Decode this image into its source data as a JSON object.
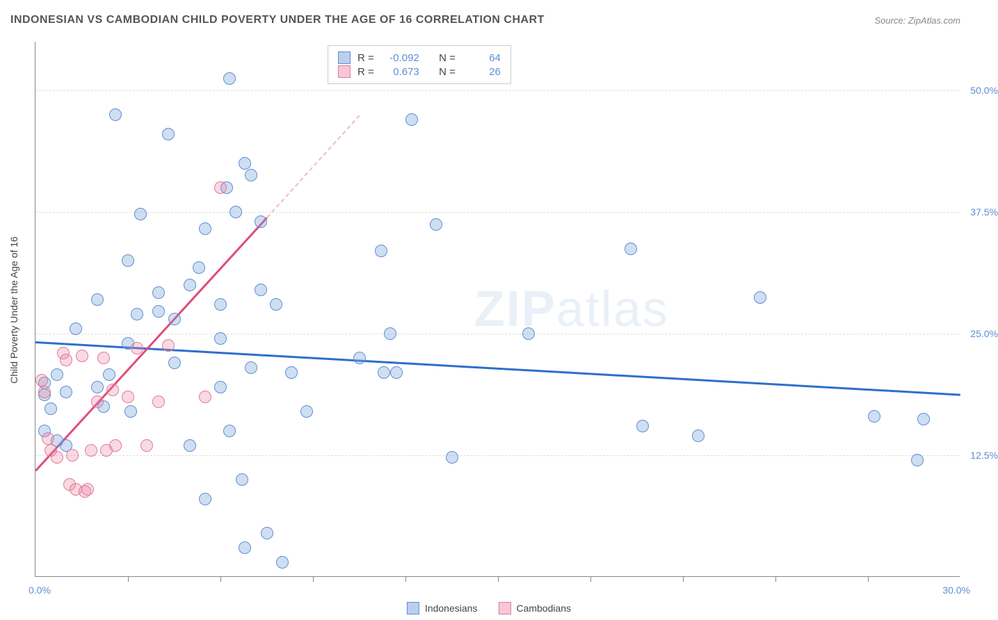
{
  "title": "INDONESIAN VS CAMBODIAN CHILD POVERTY UNDER THE AGE OF 16 CORRELATION CHART",
  "source": "Source: ZipAtlas.com",
  "watermark": {
    "bold": "ZIP",
    "light": "atlas"
  },
  "chart": {
    "type": "scatter",
    "xlim": [
      0,
      30
    ],
    "ylim": [
      0,
      55
    ],
    "x_min_label": "0.0%",
    "x_max_label": "30.0%",
    "y_ticks": [
      12.5,
      25.0,
      37.5,
      50.0
    ],
    "y_tick_labels": [
      "12.5%",
      "25.0%",
      "37.5%",
      "50.0%"
    ],
    "x_tick_positions": [
      3,
      6,
      9,
      12,
      15,
      18,
      21,
      24,
      27
    ],
    "y_axis_title": "Child Poverty Under the Age of 16",
    "background_color": "#ffffff",
    "grid_color": "#dddddd",
    "series": [
      {
        "name": "Indonesians",
        "color_fill": "rgba(120,160,215,0.35)",
        "color_stroke": "#5b8fd6",
        "marker_radius": 9,
        "R": "-0.092",
        "N": "64",
        "trend": {
          "x1": 0,
          "y1": 24.2,
          "x2": 30,
          "y2": 18.8,
          "color": "#2e6fc9",
          "width": 2.5
        },
        "points": [
          [
            6.3,
            51.2
          ],
          [
            2.6,
            47.5
          ],
          [
            4.3,
            45.5
          ],
          [
            6.8,
            42.5
          ],
          [
            7.0,
            41.3
          ],
          [
            6.2,
            40.0
          ],
          [
            3.4,
            37.3
          ],
          [
            7.3,
            36.5
          ],
          [
            5.5,
            35.8
          ],
          [
            13.0,
            36.2
          ],
          [
            3.0,
            32.5
          ],
          [
            11.2,
            33.5
          ],
          [
            19.3,
            33.7
          ],
          [
            5.0,
            30.0
          ],
          [
            23.5,
            28.7
          ],
          [
            7.3,
            29.5
          ],
          [
            6.0,
            28.0
          ],
          [
            2.0,
            28.5
          ],
          [
            4.0,
            27.3
          ],
          [
            3.3,
            27.0
          ],
          [
            4.5,
            26.5
          ],
          [
            1.3,
            25.5
          ],
          [
            11.5,
            25.0
          ],
          [
            16.0,
            25.0
          ],
          [
            3.0,
            24.0
          ],
          [
            6.0,
            24.5
          ],
          [
            10.5,
            22.5
          ],
          [
            0.3,
            19.9
          ],
          [
            0.7,
            20.8
          ],
          [
            12.2,
            47.0
          ],
          [
            4.5,
            22.0
          ],
          [
            7.0,
            21.5
          ],
          [
            8.3,
            21.0
          ],
          [
            11.3,
            21.0
          ],
          [
            11.7,
            21.0
          ],
          [
            8.8,
            17.0
          ],
          [
            0.3,
            18.7
          ],
          [
            1.0,
            19.0
          ],
          [
            0.5,
            17.3
          ],
          [
            2.0,
            19.5
          ],
          [
            2.4,
            20.8
          ],
          [
            2.2,
            17.5
          ],
          [
            3.1,
            17.0
          ],
          [
            5.5,
            8.0
          ],
          [
            6.3,
            15.0
          ],
          [
            6.7,
            10.0
          ],
          [
            13.5,
            12.3
          ],
          [
            0.3,
            15.0
          ],
          [
            0.7,
            14.0
          ],
          [
            1.0,
            13.5
          ],
          [
            5.0,
            13.5
          ],
          [
            19.7,
            15.5
          ],
          [
            21.5,
            14.5
          ],
          [
            27.2,
            16.5
          ],
          [
            28.8,
            16.2
          ],
          [
            7.5,
            4.5
          ],
          [
            6.8,
            3.0
          ],
          [
            6.0,
            19.5
          ],
          [
            8.0,
            1.5
          ],
          [
            28.6,
            12.0
          ],
          [
            5.3,
            31.8
          ],
          [
            4.0,
            29.2
          ],
          [
            6.5,
            37.5
          ],
          [
            7.8,
            28.0
          ]
        ]
      },
      {
        "name": "Cambodians",
        "color_fill": "rgba(235,130,160,0.30)",
        "color_stroke": "#e07a9a",
        "marker_radius": 9,
        "R": "0.673",
        "N": "26",
        "trend_solid": {
          "x1": 0,
          "y1": 11.0,
          "x2": 7.5,
          "y2": 37.0,
          "color": "#e24a7a",
          "width": 2.5
        },
        "trend_dash": {
          "x1": 7.5,
          "y1": 37.0,
          "x2": 10.5,
          "y2": 47.5,
          "color": "#f2b8c8",
          "width": 2
        },
        "points": [
          [
            0.2,
            20.2
          ],
          [
            0.3,
            19.0
          ],
          [
            0.4,
            14.2
          ],
          [
            0.5,
            13.0
          ],
          [
            0.7,
            12.3
          ],
          [
            0.9,
            23.0
          ],
          [
            1.0,
            22.3
          ],
          [
            1.1,
            9.5
          ],
          [
            1.2,
            12.5
          ],
          [
            1.3,
            9.0
          ],
          [
            1.5,
            22.7
          ],
          [
            1.6,
            8.8
          ],
          [
            1.7,
            9.0
          ],
          [
            1.8,
            13.0
          ],
          [
            2.0,
            18.0
          ],
          [
            2.2,
            22.5
          ],
          [
            2.3,
            13.0
          ],
          [
            2.5,
            19.2
          ],
          [
            2.6,
            13.5
          ],
          [
            3.0,
            18.5
          ],
          [
            3.3,
            23.5
          ],
          [
            3.6,
            13.5
          ],
          [
            4.0,
            18.0
          ],
          [
            4.3,
            23.8
          ],
          [
            5.5,
            18.5
          ],
          [
            6.0,
            40.0
          ]
        ]
      }
    ]
  },
  "legend": {
    "series1_label": "Indonesians",
    "series2_label": "Cambodians",
    "blue_swatch_fill": "rgba(120,160,215,0.5)",
    "blue_swatch_border": "#5b8fd6",
    "pink_swatch_fill": "rgba(235,130,160,0.45)",
    "pink_swatch_border": "#e07a9a"
  },
  "stats": {
    "R_label": "R =",
    "N_label": "N ="
  }
}
